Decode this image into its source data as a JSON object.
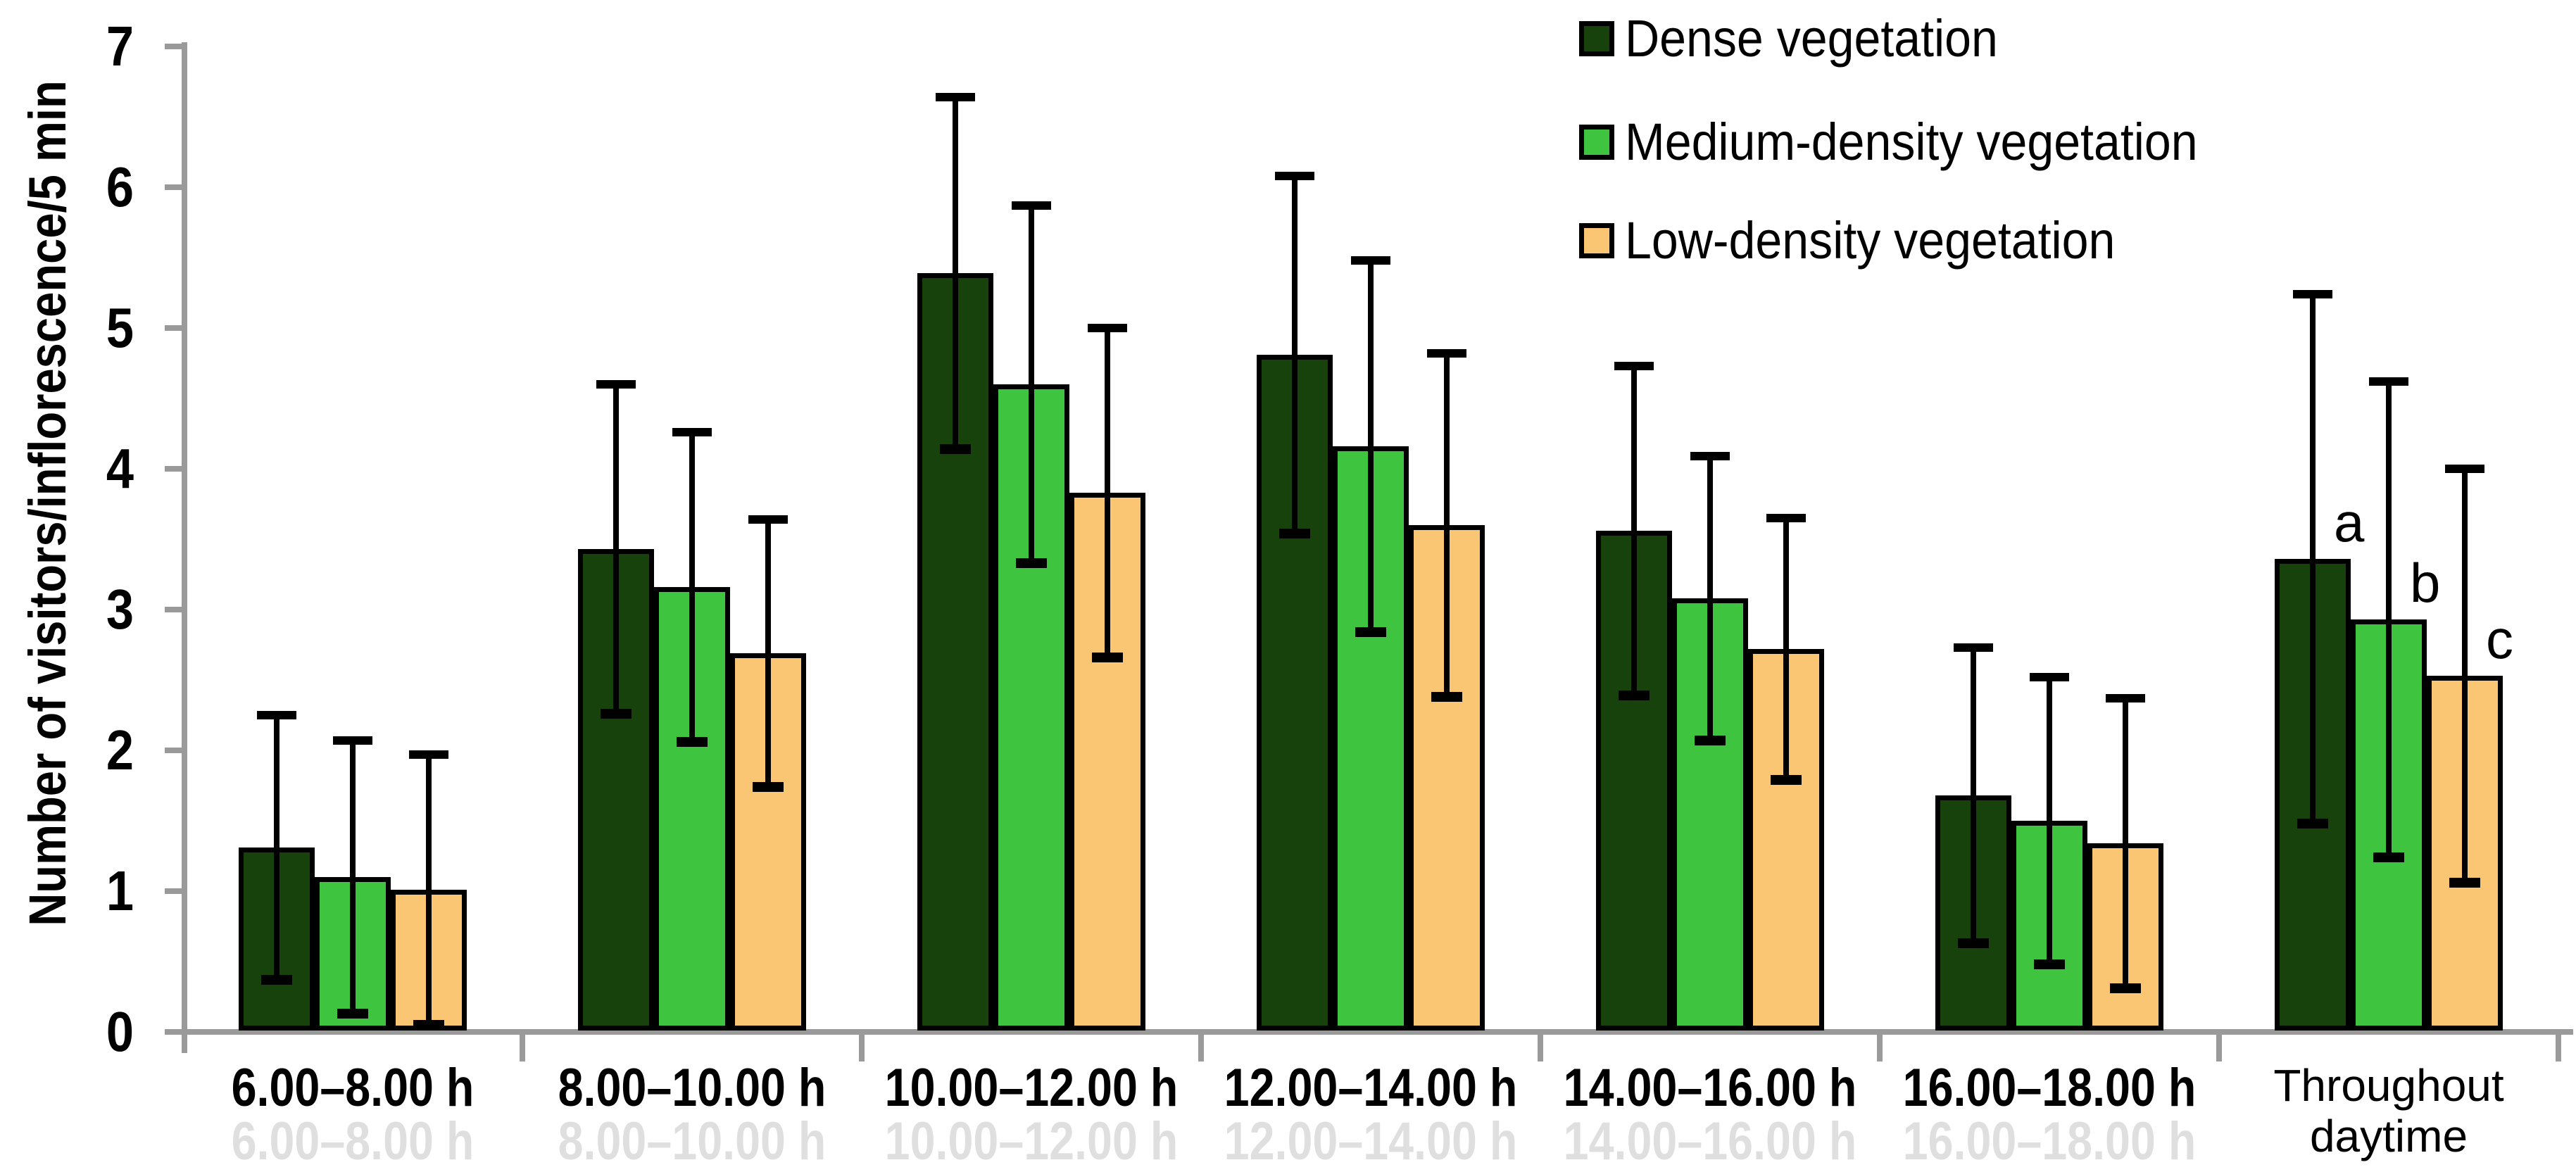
{
  "chart_data": {
    "type": "bar",
    "title": "",
    "ylabel": "Number of visitors/inflorescence/5 min",
    "xlabel": "",
    "ylim": [
      0,
      7
    ],
    "grid": false,
    "error_bars": true,
    "legend_position": "top-right",
    "axis_color": "#9a9a9a",
    "bar_outline_color": "#000000",
    "error_bar_color": "#000000",
    "categories": [
      "6.00–8.00 h",
      "8.00–10.00 h",
      "10.00–12.00 h",
      "12.00–14.00 h",
      "14.00–16.00 h",
      "16.00–18.00 h",
      "Throughout daytime"
    ],
    "series": [
      {
        "name": "Dense vegetation",
        "color": "#17420c",
        "values": [
          1.31,
          3.43,
          5.39,
          4.81,
          3.56,
          1.68,
          3.36
        ],
        "errors": [
          0.94,
          1.17,
          1.25,
          1.27,
          1.17,
          1.05,
          1.88
        ]
      },
      {
        "name": "Medium-density vegetation",
        "color": "#3ec43e",
        "values": [
          1.1,
          3.16,
          4.6,
          4.16,
          3.08,
          1.5,
          2.93
        ],
        "errors": [
          0.97,
          1.1,
          1.27,
          1.32,
          1.01,
          1.02,
          1.69
        ]
      },
      {
        "name": "Low-density vegetation",
        "color": "#fac673",
        "values": [
          1.01,
          2.69,
          3.83,
          3.6,
          2.72,
          1.34,
          2.53
        ],
        "errors": [
          0.96,
          0.95,
          1.17,
          1.22,
          0.93,
          1.03,
          1.47
        ]
      }
    ],
    "significance_letters": {
      "category": "Throughout daytime",
      "letters": [
        "a",
        "b",
        "c"
      ]
    }
  },
  "y_axis": {
    "title": "Number of visitors/inflorescence/5 min",
    "min": 0,
    "max": 7,
    "tick_step": 1,
    "ticks": [
      "0",
      "1",
      "2",
      "3",
      "4",
      "5",
      "6",
      "7"
    ]
  },
  "x_axis": {
    "categories": [
      "6.00–8.00 h",
      "8.00–10.00 h",
      "10.00–12.00 h",
      "12.00–14.00 h",
      "14.00–16.00 h",
      "16.00–18.00 h",
      "Throughout daytime"
    ],
    "last_label_lines": [
      "Throughout",
      "daytime"
    ]
  },
  "legend": [
    {
      "label": "Dense vegetation",
      "color": "#17420c"
    },
    {
      "label": "Medium-density vegetation",
      "color": "#3ec43e"
    },
    {
      "label": "Low-density vegetation",
      "color": "#fac673"
    }
  ]
}
